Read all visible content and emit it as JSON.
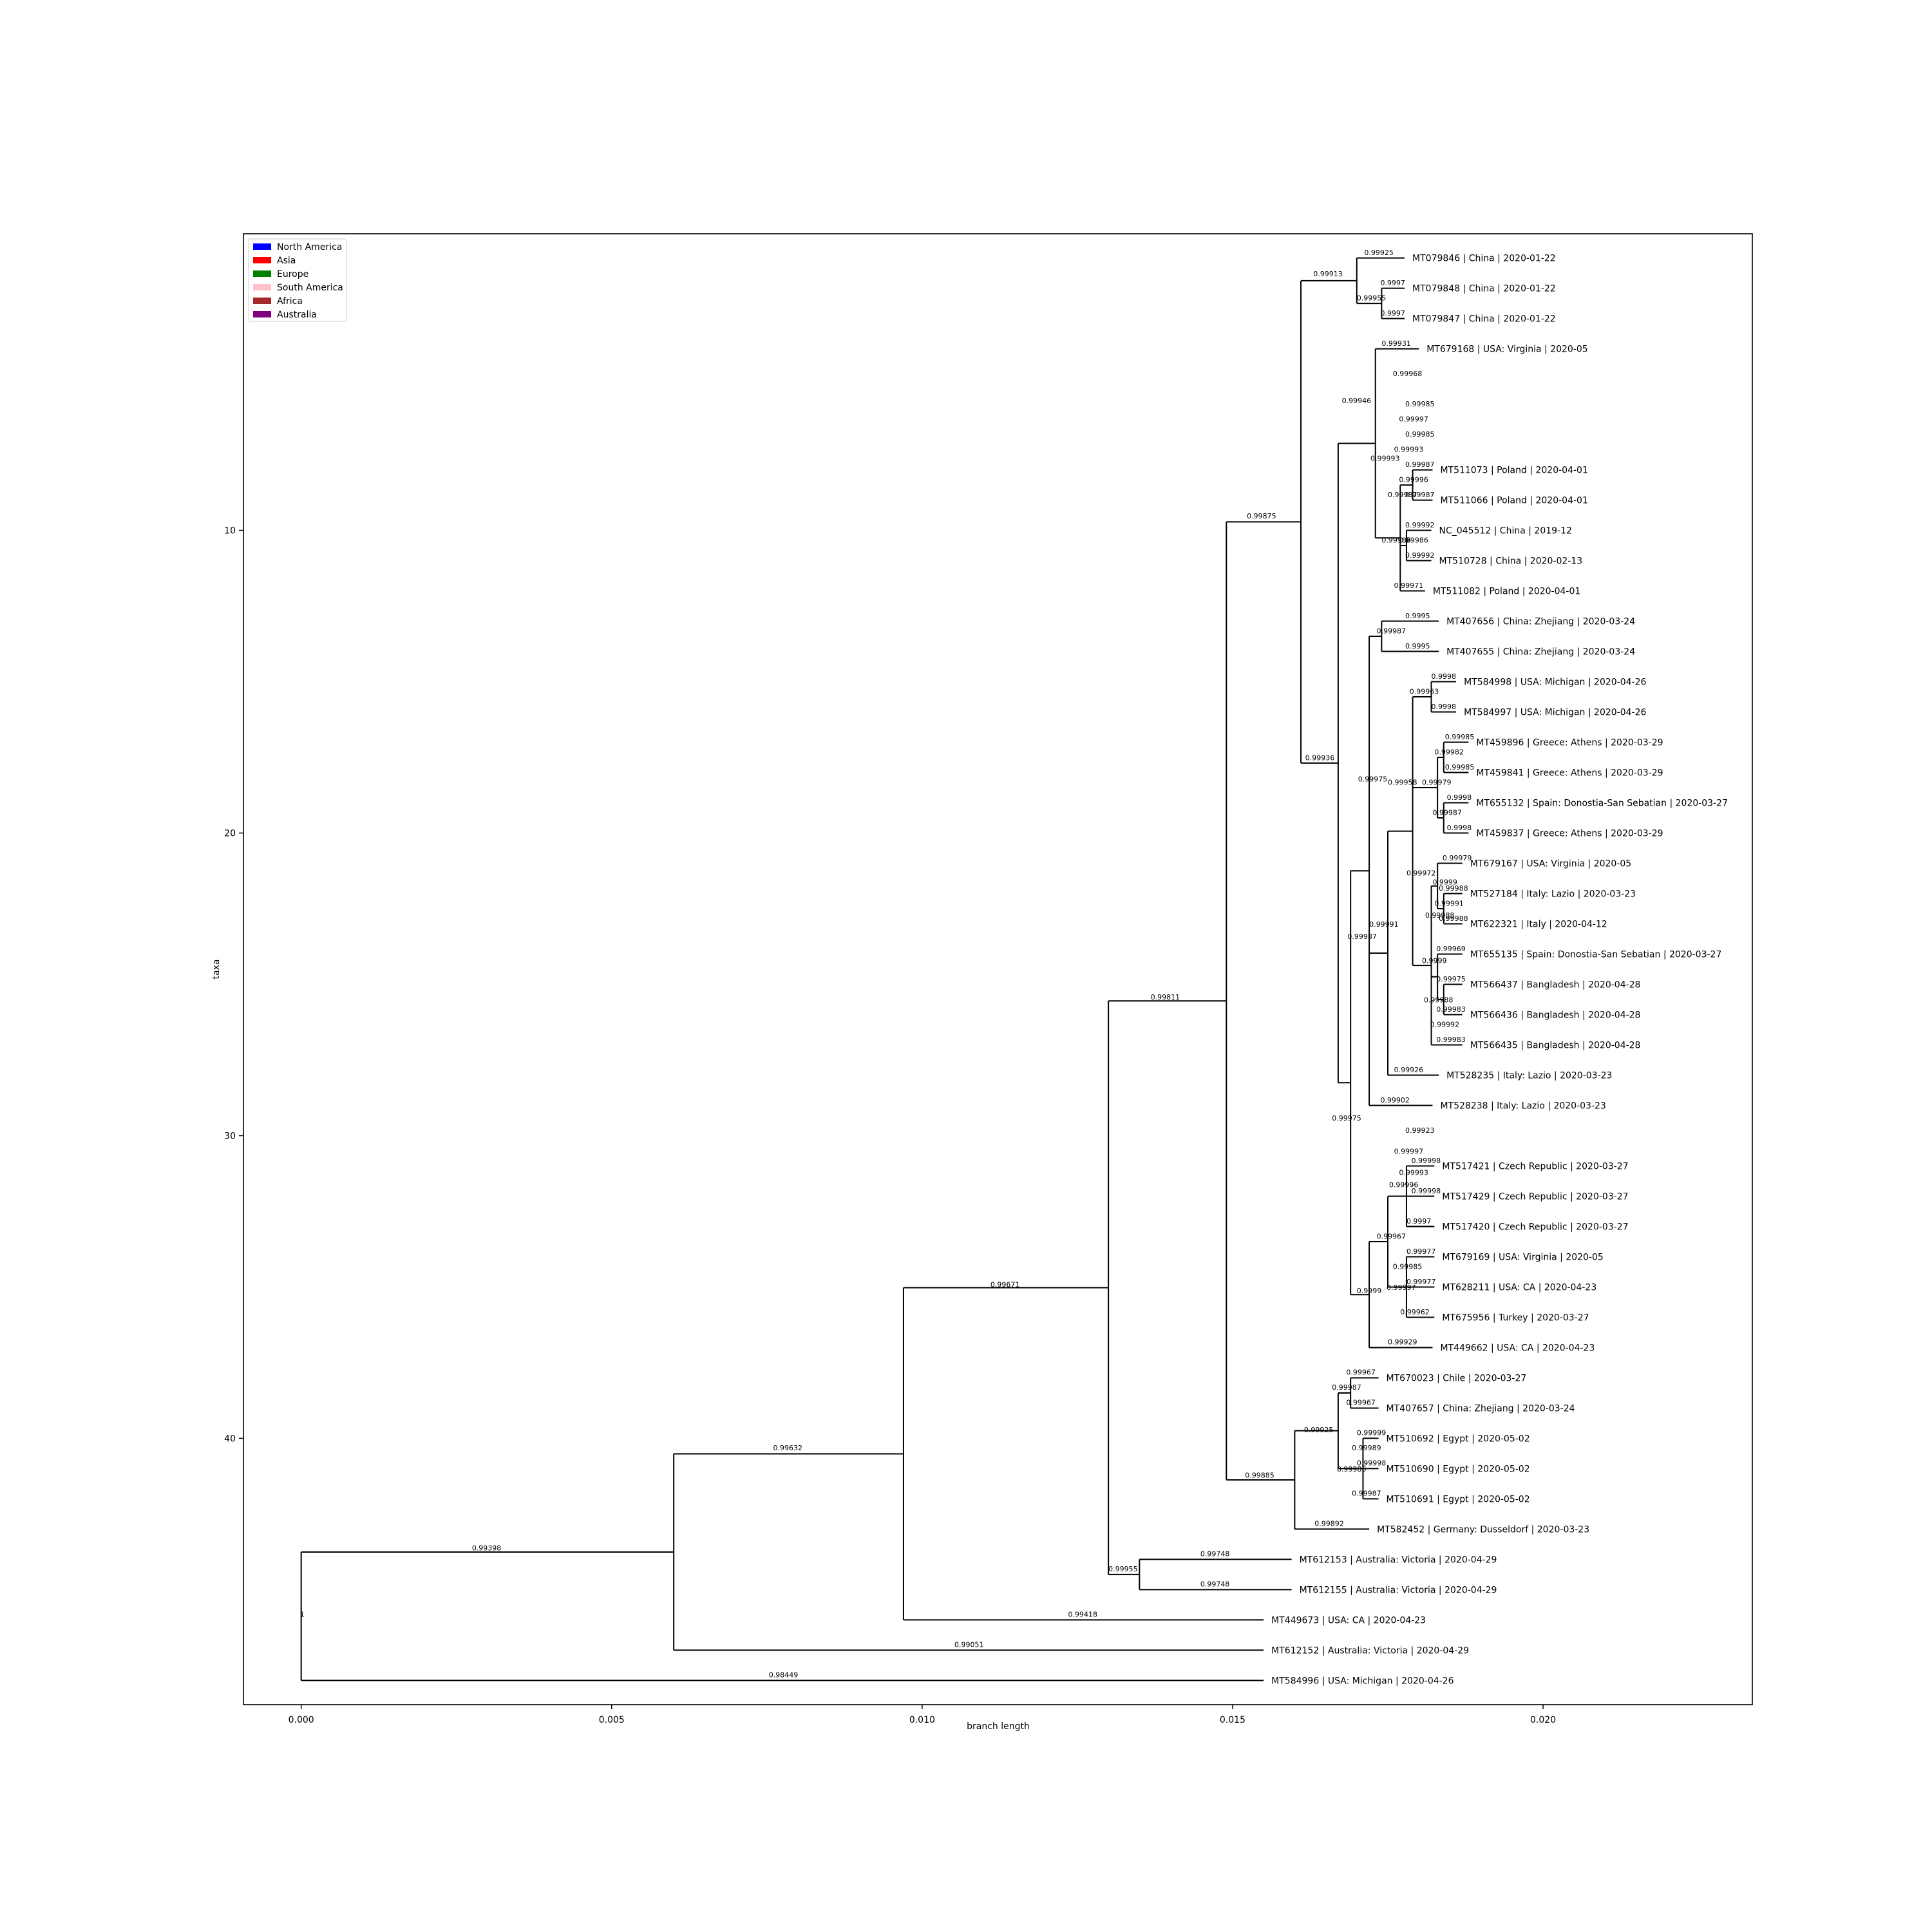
{
  "axes": {
    "xlabel": "branch length",
    "ylabel": "taxa",
    "xticks": [
      "0.000",
      "0.005",
      "0.010",
      "0.015",
      "0.020"
    ],
    "xtick_values": [
      0,
      0.005,
      0.01,
      0.015,
      0.02
    ],
    "yticks": [
      "10",
      "20",
      "30",
      "40"
    ],
    "ytick_values": [
      10,
      20,
      30,
      40
    ],
    "xlim": [
      -0.00093,
      0.02337
    ],
    "ylim": [
      48.8,
      0.2
    ]
  },
  "legend": {
    "position": "top-left",
    "items": [
      {
        "label": "North America",
        "color": "#0000ff"
      },
      {
        "label": "Asia",
        "color": "#ff0000"
      },
      {
        "label": "Europe",
        "color": "#008000"
      },
      {
        "label": "South America",
        "color": "#ffc0cb"
      },
      {
        "label": "Africa",
        "color": "#a52a2a"
      },
      {
        "label": "Australia",
        "color": "#800080"
      }
    ]
  },
  "chart_data": {
    "type": "tree",
    "xlabel": "branch length",
    "ylabel": "taxa",
    "leaves": [
      {
        "label": "MT079846 | China | 2020-01-22",
        "x": 0.01777,
        "y": 1
      },
      {
        "label": "MT079848 | China | 2020-01-22",
        "x": 0.01777,
        "y": 2
      },
      {
        "label": "MT079847 | China | 2020-01-22",
        "x": 0.01777,
        "y": 3
      },
      {
        "label": "MT679168 | USA: Virginia | 2020-05",
        "x": 0.018,
        "y": 4
      },
      {
        "label": "MT511073 | Poland | 2020-04-01",
        "x": 0.01822,
        "y": 8
      },
      {
        "label": "MT511066 | Poland | 2020-04-01",
        "x": 0.01822,
        "y": 9
      },
      {
        "label": "NC_045512 | China | 2019-12",
        "x": 0.0182,
        "y": 10
      },
      {
        "label": "MT510728 | China | 2020-02-13",
        "x": 0.0182,
        "y": 11
      },
      {
        "label": "MT511082 | Poland | 2020-04-01",
        "x": 0.0181,
        "y": 12
      },
      {
        "label": "MT407656 | China: Zhejiang | 2020-03-24",
        "x": 0.01832,
        "y": 13
      },
      {
        "label": "MT407655 | China: Zhejiang | 2020-03-24",
        "x": 0.01832,
        "y": 14
      },
      {
        "label": "MT584998 | USA: Michigan | 2020-04-26",
        "x": 0.0186,
        "y": 15
      },
      {
        "label": "MT584997 | USA: Michigan | 2020-04-26",
        "x": 0.0186,
        "y": 16
      },
      {
        "label": "MT459896 | Greece: Athens | 2020-03-29",
        "x": 0.0188,
        "y": 17
      },
      {
        "label": "MT459841 | Greece: Athens | 2020-03-29",
        "x": 0.0188,
        "y": 18
      },
      {
        "label": "MT655132 | Spain: Donostia-San Sebatian | 2020-03-27",
        "x": 0.0188,
        "y": 19
      },
      {
        "label": "MT459837 | Greece: Athens | 2020-03-29",
        "x": 0.0188,
        "y": 20
      },
      {
        "label": "MT679167 | USA: Virginia | 2020-05",
        "x": 0.0187,
        "y": 21
      },
      {
        "label": "MT527184 | Italy: Lazio | 2020-03-23",
        "x": 0.0187,
        "y": 22
      },
      {
        "label": "MT622321 | Italy | 2020-04-12",
        "x": 0.0187,
        "y": 23
      },
      {
        "label": "MT655135 | Spain: Donostia-San Sebatian | 2020-03-27",
        "x": 0.0187,
        "y": 24
      },
      {
        "label": "MT566437 | Bangladesh | 2020-04-28",
        "x": 0.0187,
        "y": 25
      },
      {
        "label": "MT566436 | Bangladesh | 2020-04-28",
        "x": 0.0187,
        "y": 26
      },
      {
        "label": "MT566435 | Bangladesh | 2020-04-28",
        "x": 0.0187,
        "y": 27
      },
      {
        "label": "MT528235 | Italy: Lazio | 2020-03-23",
        "x": 0.01832,
        "y": 28
      },
      {
        "label": "MT528238 | Italy: Lazio | 2020-03-23",
        "x": 0.01822,
        "y": 29
      },
      {
        "label": "MT517421 | Czech Republic | 2020-03-27",
        "x": 0.01825,
        "y": 31
      },
      {
        "label": "MT517429 | Czech Republic | 2020-03-27",
        "x": 0.01825,
        "y": 32
      },
      {
        "label": "MT517420 | Czech Republic | 2020-03-27",
        "x": 0.01825,
        "y": 33
      },
      {
        "label": "MT679169 | USA: Virginia | 2020-05",
        "x": 0.01825,
        "y": 34
      },
      {
        "label": "MT628211 | USA: CA | 2020-04-23",
        "x": 0.01825,
        "y": 35
      },
      {
        "label": "MT675956 | Turkey | 2020-03-27",
        "x": 0.01825,
        "y": 36
      },
      {
        "label": "MT449662 | USA: CA | 2020-04-23",
        "x": 0.01822,
        "y": 37
      },
      {
        "label": "MT670023 | Chile | 2020-03-27",
        "x": 0.01735,
        "y": 38
      },
      {
        "label": "MT407657 | China: Zhejiang | 2020-03-24",
        "x": 0.01735,
        "y": 39
      },
      {
        "label": "MT510692 | Egypt | 2020-05-02",
        "x": 0.01735,
        "y": 40
      },
      {
        "label": "MT510690 | Egypt | 2020-05-02",
        "x": 0.01735,
        "y": 41
      },
      {
        "label": "MT510691 | Egypt | 2020-05-02",
        "x": 0.01735,
        "y": 42
      },
      {
        "label": "MT582452 | Germany: Dusseldorf | 2020-03-23",
        "x": 0.0172,
        "y": 43
      },
      {
        "label": "MT612153 | Australia: Victoria | 2020-04-29",
        "x": 0.01595,
        "y": 44
      },
      {
        "label": "MT612155 | Australia: Victoria | 2020-04-29",
        "x": 0.01595,
        "y": 45
      },
      {
        "label": "MT449673 | USA: CA | 2020-04-23",
        "x": 0.0155,
        "y": 46
      },
      {
        "label": "MT612152 | Australia: Victoria | 2020-04-29",
        "x": 0.0155,
        "y": 47
      },
      {
        "label": "MT584996 | USA: Michigan | 2020-04-26",
        "x": 0.0155,
        "y": 48
      }
    ],
    "support_labels": [
      {
        "text": "0.99925",
        "x": 0.01712,
        "y": 0.9
      },
      {
        "text": "0.9997",
        "x": 0.01738,
        "y": 1.9
      },
      {
        "text": "0.99955",
        "x": 0.017,
        "y": 2.4
      },
      {
        "text": "0.9997",
        "x": 0.01738,
        "y": 2.9
      },
      {
        "text": "0.99913",
        "x": 0.0163,
        "y": 1.6
      },
      {
        "text": "0.99931",
        "x": 0.0174,
        "y": 3.9
      },
      {
        "text": "0.99968",
        "x": 0.01758,
        "y": 4.9
      },
      {
        "text": "0.99985",
        "x": 0.01778,
        "y": 5.9
      },
      {
        "text": "0.99946",
        "x": 0.01676,
        "y": 5.8
      },
      {
        "text": "0.99997",
        "x": 0.01768,
        "y": 6.4
      },
      {
        "text": "0.99985",
        "x": 0.01778,
        "y": 6.9
      },
      {
        "text": "0.99993",
        "x": 0.0176,
        "y": 7.4
      },
      {
        "text": "0.99993",
        "x": 0.01722,
        "y": 7.7
      },
      {
        "text": "0.99987",
        "x": 0.01778,
        "y": 7.9
      },
      {
        "text": "0.99996",
        "x": 0.01768,
        "y": 8.4
      },
      {
        "text": "0.99987",
        "x": 0.0175,
        "y": 8.9
      },
      {
        "text": "0.99987",
        "x": 0.01778,
        "y": 8.9
      },
      {
        "text": "0.99992",
        "x": 0.01778,
        "y": 9.9
      },
      {
        "text": "0.99986",
        "x": 0.0174,
        "y": 10.4
      },
      {
        "text": "0.99986",
        "x": 0.01768,
        "y": 10.4
      },
      {
        "text": "0.99992",
        "x": 0.01778,
        "y": 10.9
      },
      {
        "text": "0.99971",
        "x": 0.0176,
        "y": 11.9
      },
      {
        "text": "0.99875",
        "x": 0.01523,
        "y": 9.6
      },
      {
        "text": "0.9995",
        "x": 0.01778,
        "y": 12.9
      },
      {
        "text": "0.99987",
        "x": 0.01732,
        "y": 13.4
      },
      {
        "text": "0.9995",
        "x": 0.01778,
        "y": 13.9
      },
      {
        "text": "0.9998",
        "x": 0.0182,
        "y": 14.9
      },
      {
        "text": "0.99963",
        "x": 0.01785,
        "y": 15.4
      },
      {
        "text": "0.9998",
        "x": 0.0182,
        "y": 15.9
      },
      {
        "text": "0.99985",
        "x": 0.01842,
        "y": 16.9
      },
      {
        "text": "0.99982",
        "x": 0.01825,
        "y": 17.4
      },
      {
        "text": "0.99985",
        "x": 0.01842,
        "y": 17.9
      },
      {
        "text": "0.99979",
        "x": 0.01805,
        "y": 18.4
      },
      {
        "text": "0.99958",
        "x": 0.0175,
        "y": 18.4
      },
      {
        "text": "0.9998",
        "x": 0.01845,
        "y": 18.9
      },
      {
        "text": "0.99987",
        "x": 0.01822,
        "y": 19.4
      },
      {
        "text": "0.9998",
        "x": 0.01845,
        "y": 19.9
      },
      {
        "text": "0.99936",
        "x": 0.01617,
        "y": 17.6
      },
      {
        "text": "0.99975",
        "x": 0.01702,
        "y": 18.3
      },
      {
        "text": "0.99979",
        "x": 0.01838,
        "y": 20.9
      },
      {
        "text": "0.99972",
        "x": 0.0178,
        "y": 21.4
      },
      {
        "text": "0.9999",
        "x": 0.01822,
        "y": 21.7
      },
      {
        "text": "0.99988",
        "x": 0.01832,
        "y": 21.9
      },
      {
        "text": "0.99991",
        "x": 0.01825,
        "y": 22.4
      },
      {
        "text": "0.99988",
        "x": 0.0181,
        "y": 22.8
      },
      {
        "text": "0.99988",
        "x": 0.01832,
        "y": 22.9
      },
      {
        "text": "0.99991",
        "x": 0.0172,
        "y": 23.1
      },
      {
        "text": "0.99987",
        "x": 0.01685,
        "y": 23.5
      },
      {
        "text": "0.99969",
        "x": 0.01828,
        "y": 23.9
      },
      {
        "text": "0.9999",
        "x": 0.01805,
        "y": 24.3
      },
      {
        "text": "0.99975",
        "x": 0.01828,
        "y": 24.9
      },
      {
        "text": "0.99988",
        "x": 0.01808,
        "y": 25.6
      },
      {
        "text": "0.99983",
        "x": 0.01828,
        "y": 25.9
      },
      {
        "text": "0.99992",
        "x": 0.01818,
        "y": 26.4
      },
      {
        "text": "0.99983",
        "x": 0.01828,
        "y": 26.9
      },
      {
        "text": "0.99811",
        "x": 0.01368,
        "y": 25.5
      },
      {
        "text": "0.99926",
        "x": 0.0176,
        "y": 27.9
      },
      {
        "text": "0.99902",
        "x": 0.01738,
        "y": 28.9
      },
      {
        "text": "0.99975",
        "x": 0.0166,
        "y": 29.5
      },
      {
        "text": "0.99923",
        "x": 0.01778,
        "y": 29.9
      },
      {
        "text": "0.99997",
        "x": 0.0176,
        "y": 30.6
      },
      {
        "text": "0.99998",
        "x": 0.01788,
        "y": 30.9
      },
      {
        "text": "0.99993",
        "x": 0.01768,
        "y": 31.3
      },
      {
        "text": "0.99996",
        "x": 0.01752,
        "y": 31.7
      },
      {
        "text": "0.99998",
        "x": 0.01788,
        "y": 31.9
      },
      {
        "text": "0.9997",
        "x": 0.0178,
        "y": 32.9
      },
      {
        "text": "0.99967",
        "x": 0.01732,
        "y": 33.4
      },
      {
        "text": "0.99977",
        "x": 0.0178,
        "y": 33.9
      },
      {
        "text": "0.99985",
        "x": 0.01758,
        "y": 34.4
      },
      {
        "text": "0.99977",
        "x": 0.0178,
        "y": 34.9
      },
      {
        "text": "0.99997",
        "x": 0.01748,
        "y": 35.1
      },
      {
        "text": "0.9999",
        "x": 0.017,
        "y": 35.2
      },
      {
        "text": "0.99962",
        "x": 0.0177,
        "y": 35.9
      },
      {
        "text": "0.99929",
        "x": 0.0175,
        "y": 36.9
      },
      {
        "text": "0.99671",
        "x": 0.0111,
        "y": 35.0
      },
      {
        "text": "0.99967",
        "x": 0.01683,
        "y": 37.9
      },
      {
        "text": "0.99987",
        "x": 0.0166,
        "y": 38.4
      },
      {
        "text": "0.99967",
        "x": 0.01683,
        "y": 38.9
      },
      {
        "text": "0.99925",
        "x": 0.01615,
        "y": 39.8
      },
      {
        "text": "0.99999",
        "x": 0.017,
        "y": 39.9
      },
      {
        "text": "0.99989",
        "x": 0.01692,
        "y": 40.4
      },
      {
        "text": "0.99998",
        "x": 0.017,
        "y": 40.9
      },
      {
        "text": "0.99986",
        "x": 0.01668,
        "y": 41.1
      },
      {
        "text": "0.99987",
        "x": 0.01692,
        "y": 41.9
      },
      {
        "text": "0.99885",
        "x": 0.0152,
        "y": 41.3
      },
      {
        "text": "0.99892",
        "x": 0.01632,
        "y": 42.9
      },
      {
        "text": "0.99748",
        "x": 0.01448,
        "y": 43.9
      },
      {
        "text": "0.99955",
        "x": 0.013,
        "y": 44.4
      },
      {
        "text": "0.99748",
        "x": 0.01448,
        "y": 44.9
      },
      {
        "text": "0.99632",
        "x": 0.0076,
        "y": 40.4
      },
      {
        "text": "0.99418",
        "x": 0.01235,
        "y": 45.9
      },
      {
        "text": "0.99051",
        "x": 0.01052,
        "y": 46.9
      },
      {
        "text": "0.99398",
        "x": 0.00275,
        "y": 43.7
      },
      {
        "text": "1",
        "x": -2e-05,
        "y": 45.9
      },
      {
        "text": "0.98449",
        "x": 0.00753,
        "y": 47.9
      }
    ]
  }
}
